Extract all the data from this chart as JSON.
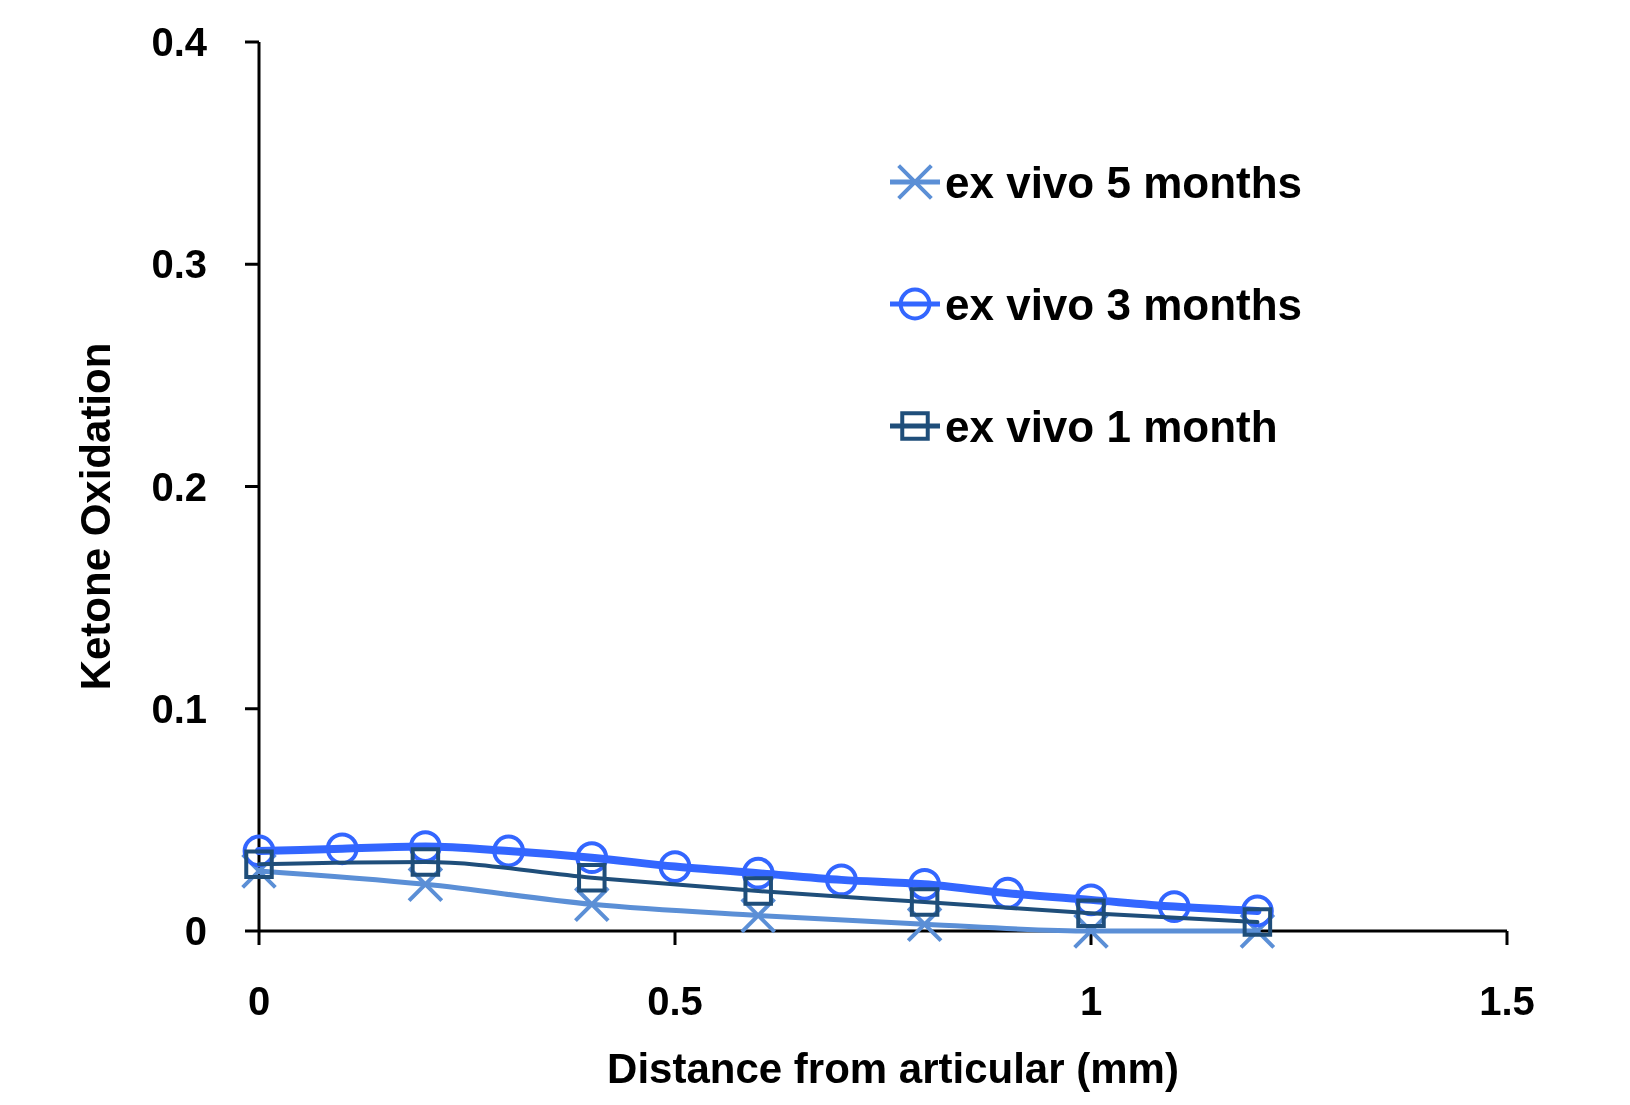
{
  "chart_data": {
    "type": "line",
    "xlabel": "Distance from articular (mm)",
    "ylabel": "Ketone Oxidation",
    "xlim": [
      0,
      1.5
    ],
    "xticks": [
      0,
      0.5,
      1,
      1.5
    ],
    "ylim": [
      0,
      0.4
    ],
    "yticks": [
      0,
      0.1,
      0.2,
      0.3,
      0.4
    ],
    "grid": false,
    "legend": "top right",
    "series": [
      {
        "name": "ex vivo 5 months",
        "color": "#5b8fd6",
        "marker": "cross",
        "x": [
          0,
          0.2,
          0.4,
          0.6,
          0.8,
          1.0,
          1.2
        ],
        "values": [
          0.027,
          0.021,
          0.012,
          0.007,
          0.003,
          0.0,
          0.0
        ]
      },
      {
        "name": "ex vivo 3 months",
        "color": "#3366ff",
        "marker": "circle",
        "x": [
          0,
          0.1,
          0.2,
          0.3,
          0.4,
          0.5,
          0.6,
          0.7,
          0.8,
          0.9,
          1.0,
          1.1,
          1.2
        ],
        "values": [
          0.036,
          0.037,
          0.038,
          0.036,
          0.033,
          0.029,
          0.026,
          0.023,
          0.021,
          0.017,
          0.014,
          0.011,
          0.009
        ]
      },
      {
        "name": "ex vivo 1 month",
        "color": "#1f4e7a",
        "marker": "square",
        "x": [
          0,
          0.2,
          0.4,
          0.6,
          0.8,
          1.0,
          1.2
        ],
        "values": [
          0.03,
          0.031,
          0.024,
          0.018,
          0.013,
          0.008,
          0.004
        ]
      }
    ]
  }
}
